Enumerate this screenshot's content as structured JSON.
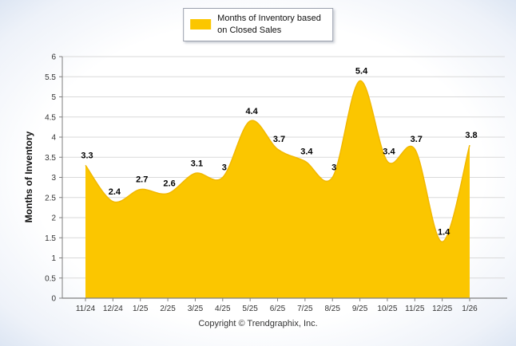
{
  "legend": {
    "line1": "Months of Inventory based",
    "line2": "on Closed Sales"
  },
  "footer": "Copyright © Trendgraphix, Inc.",
  "colors": {
    "area": "#FBC600",
    "area_edge": "#F2B800",
    "grid": "#d9d9d9",
    "axis": "#7f7f7f",
    "tick_text": "#333333",
    "data_label": "#000000",
    "legend_border": "#9aa0ad"
  },
  "chart_data": {
    "type": "area",
    "title": "",
    "xlabel": "",
    "ylabel": "Months of Inventory",
    "categories": [
      "11/24",
      "12/24",
      "1/25",
      "2/25",
      "3/25",
      "4/25",
      "5/25",
      "6/25",
      "7/25",
      "8/25",
      "9/25",
      "10/25",
      "11/25",
      "12/25",
      "1/26"
    ],
    "values": [
      3.3,
      2.4,
      2.7,
      2.6,
      3.1,
      3,
      4.4,
      3.7,
      3.4,
      3,
      5.4,
      3.4,
      3.7,
      1.4,
      3.8
    ],
    "ylim": [
      0,
      6
    ],
    "ytick_step": 0.5,
    "grid": true,
    "legend_entries": [
      "Months of Inventory based on Closed Sales"
    ],
    "legend_position": "top",
    "smooth": true
  }
}
